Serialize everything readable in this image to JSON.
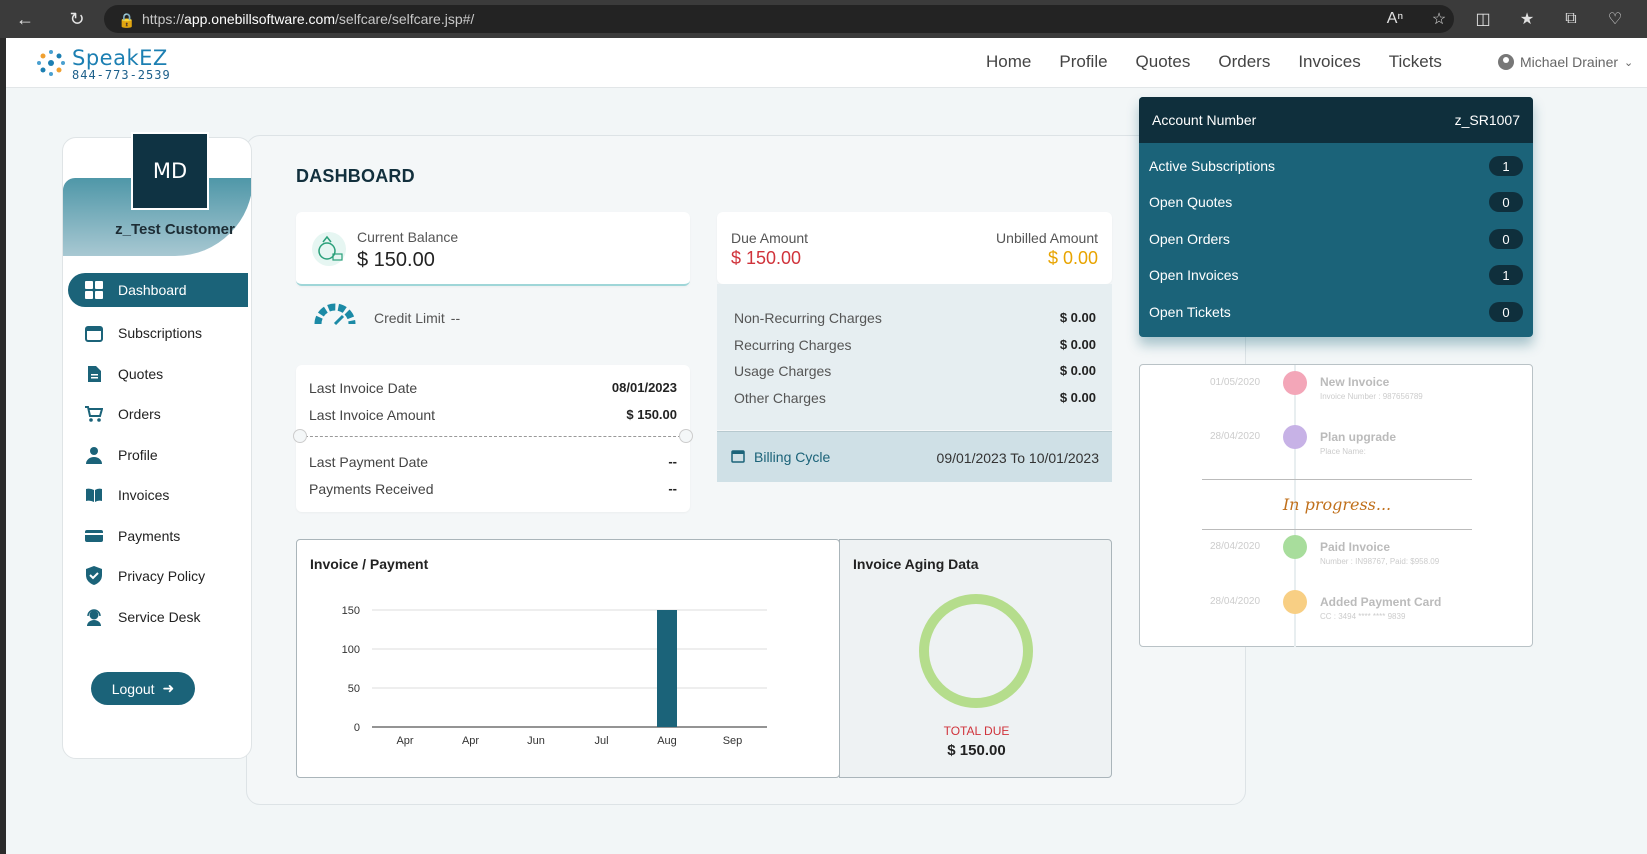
{
  "browser": {
    "url_scheme": "https://",
    "url_host": "app.onebillsoftware.com",
    "url_path": "/selfcare/selfcare.jsp#/"
  },
  "brand": {
    "name": "SpeakEZ",
    "phone": "844-773-2539"
  },
  "nav": {
    "links": [
      "Home",
      "Profile",
      "Quotes",
      "Orders",
      "Invoices",
      "Tickets"
    ],
    "user": "Michael Drainer"
  },
  "sidebar": {
    "initials": "MD",
    "customer_name": "z_Test Customer",
    "items": [
      {
        "label": "Dashboard",
        "icon": "grid-icon"
      },
      {
        "label": "Subscriptions",
        "icon": "calendar-icon"
      },
      {
        "label": "Quotes",
        "icon": "document-icon"
      },
      {
        "label": "Orders",
        "icon": "cart-icon"
      },
      {
        "label": "Profile",
        "icon": "person-icon"
      },
      {
        "label": "Invoices",
        "icon": "book-icon"
      },
      {
        "label": "Payments",
        "icon": "card-icon"
      },
      {
        "label": "Privacy Policy",
        "icon": "shield-icon"
      },
      {
        "label": "Service Desk",
        "icon": "headset-icon"
      }
    ],
    "logout": "Logout"
  },
  "dashboard": {
    "title": "DASHBOARD",
    "current_balance_label": "Current Balance",
    "current_balance": "$ 150.00",
    "credit_limit_label": "Credit Limit",
    "credit_limit": "--",
    "last_invoice_date_label": "Last Invoice Date",
    "last_invoice_date": "08/01/2023",
    "last_invoice_amount_label": "Last Invoice Amount",
    "last_invoice_amount": "$ 150.00",
    "last_payment_date_label": "Last Payment Date",
    "last_payment_date": "--",
    "payments_received_label": "Payments Received",
    "payments_received": "--",
    "due_amount_label": "Due Amount",
    "due_amount": "$ 150.00",
    "unbilled_amount_label": "Unbilled Amount",
    "unbilled_amount": "$ 0.00",
    "charges": [
      {
        "label": "Non-Recurring Charges",
        "value": "$ 0.00"
      },
      {
        "label": "Recurring Charges",
        "value": "$ 0.00"
      },
      {
        "label": "Usage Charges",
        "value": "$ 0.00"
      },
      {
        "label": "Other Charges",
        "value": "$ 0.00"
      }
    ],
    "billing_cycle_label": "Billing Cycle",
    "billing_cycle": "09/01/2023 To 10/01/2023",
    "aging_title": "Invoice Aging Data",
    "total_due_label": "TOTAL DUE",
    "total_due": "$ 150.00"
  },
  "account": {
    "number_label": "Account Number",
    "number": "z_SR1007",
    "rows": [
      {
        "label": "Active Subscriptions",
        "count": "1"
      },
      {
        "label": "Open Quotes",
        "count": "0"
      },
      {
        "label": "Open Orders",
        "count": "0"
      },
      {
        "label": "Open Invoices",
        "count": "1"
      },
      {
        "label": "Open Tickets",
        "count": "0"
      }
    ]
  },
  "timeline": {
    "items": [
      {
        "date": "01/05/2020",
        "title": "New Invoice",
        "sub": "Invoice Number : 987656789",
        "color": "#f3a6b8"
      },
      {
        "date": "28/04/2020",
        "title": "Plan upgrade",
        "sub": "Place Name:",
        "color": "#c7b2e6"
      },
      {
        "date": "28/04/2020",
        "title": "Paid Invoice",
        "sub": "Number : IN98767, Paid: $958.09",
        "color": "#a8dd9c"
      },
      {
        "date": "28/04/2020",
        "title": "Added Payment Card",
        "sub": "CC : 3494 **** **** 9839",
        "color": "#f8cf84"
      }
    ],
    "overlay": "In progress..."
  },
  "chart_data": {
    "type": "bar",
    "title": "Invoice / Payment",
    "categories": [
      "Apr",
      "Apr",
      "Jun",
      "Jul",
      "Aug",
      "Sep"
    ],
    "series": [
      {
        "values": [
          0,
          0,
          0,
          0,
          150,
          0
        ],
        "color": "#1b6379"
      }
    ],
    "yticks": [
      0,
      50,
      100,
      150
    ],
    "ylim": [
      0,
      150
    ],
    "grid": true
  },
  "aging_chart": {
    "type": "pie",
    "slices": [
      {
        "label": "TOTAL DUE",
        "value": 150,
        "color": "#b5dd8c"
      }
    ]
  }
}
